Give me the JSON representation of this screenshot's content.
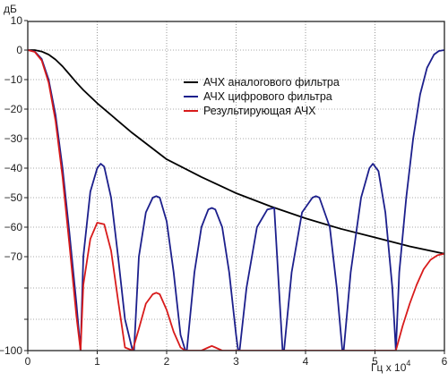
{
  "chart_data": {
    "type": "line",
    "ylabel": "дБ",
    "xlabel_base": "Гц x 10",
    "xlabel_exp": "4",
    "xlim": [
      0,
      6
    ],
    "ylim": [
      -100,
      10
    ],
    "grid": true,
    "legend_placement": "upper-right",
    "x_ticks": [
      "0",
      "1",
      "2",
      "3",
      "4",
      "5",
      "6"
    ],
    "y_ticks": [
      "10",
      "0",
      "−10",
      "−20",
      "−30",
      "−40",
      "−50",
      "−60",
      "−70",
      "−100"
    ],
    "y_tick_values": [
      10,
      0,
      -10,
      -20,
      -30,
      -40,
      -50,
      -60,
      -70,
      -100
    ],
    "series": [
      {
        "name": "АЧХ аналогового фильтра",
        "color": "#000000",
        "x": [
          0,
          0.1,
          0.2,
          0.3,
          0.4,
          0.5,
          0.6,
          0.7,
          0.8,
          1.0,
          1.2,
          1.5,
          2.0,
          2.5,
          3.0,
          3.5,
          4.0,
          4.5,
          5.0,
          5.5,
          6.0
        ],
        "y": [
          0,
          0,
          -0.5,
          -1.5,
          -3.2,
          -5.5,
          -8.2,
          -11,
          -13.5,
          -18,
          -22,
          -28,
          -37,
          -43,
          -48.5,
          -53,
          -57,
          -60.5,
          -63.5,
          -66.5,
          -69
        ]
      },
      {
        "name": "АЧХ цифрового фильтра",
        "color": "#1c1f8c",
        "x": [
          0,
          0.1,
          0.2,
          0.3,
          0.4,
          0.5,
          0.6,
          0.7,
          0.76,
          0.8,
          0.9,
          1.0,
          1.05,
          1.1,
          1.2,
          1.3,
          1.4,
          1.51,
          1.53,
          1.6,
          1.7,
          1.8,
          1.85,
          1.9,
          2.0,
          2.1,
          2.2,
          2.27,
          2.29,
          2.4,
          2.5,
          2.6,
          2.65,
          2.7,
          2.8,
          2.9,
          3.0,
          3.03,
          3.05,
          3.15,
          3.3,
          3.45,
          3.55,
          3.67,
          3.69,
          3.8,
          3.95,
          4.1,
          4.15,
          4.2,
          4.35,
          4.45,
          4.53,
          4.55,
          4.65,
          4.8,
          4.92,
          4.97,
          5.05,
          5.15,
          5.25,
          5.3,
          5.35,
          5.45,
          5.55,
          5.65,
          5.75,
          5.85,
          5.92,
          6.0
        ],
        "y": [
          0,
          -0.5,
          -3,
          -10,
          -22,
          -40,
          -62,
          -85,
          -100,
          -70,
          -48,
          -40,
          -38.5,
          -39.5,
          -50,
          -70,
          -90,
          -100,
          -100,
          -70,
          -55,
          -50,
          -49.5,
          -50,
          -58,
          -75,
          -95,
          -100,
          -100,
          -75,
          -60,
          -54,
          -53.5,
          -54,
          -60,
          -75,
          -95,
          -100,
          -100,
          -80,
          -60,
          -54,
          -53.5,
          -100,
          -100,
          -75,
          -55,
          -50,
          -49.5,
          -50,
          -60,
          -80,
          -100,
          -100,
          -75,
          -50,
          -40,
          -38.5,
          -41,
          -55,
          -80,
          -100,
          -75,
          -50,
          -30,
          -15,
          -6,
          -1.5,
          -0.3,
          0
        ]
      },
      {
        "name": "Результирующая АЧХ",
        "color": "#d81b1b",
        "x": [
          0,
          0.1,
          0.2,
          0.3,
          0.4,
          0.5,
          0.6,
          0.7,
          0.76,
          0.8,
          0.9,
          1.0,
          1.1,
          1.2,
          1.3,
          1.4,
          1.51,
          1.6,
          1.7,
          1.8,
          1.85,
          1.9,
          2.0,
          2.1,
          2.2,
          2.27,
          2.5,
          2.6,
          2.65,
          2.7,
          2.8,
          3.0,
          5.3,
          5.4,
          5.5,
          5.6,
          5.7,
          5.8,
          5.9,
          6.0
        ],
        "y": [
          0,
          -0.6,
          -3.5,
          -11,
          -24,
          -43,
          -66,
          -89,
          -100,
          -79,
          -64,
          -58.5,
          -59,
          -68,
          -84,
          -99,
          -100,
          -93,
          -85,
          -82,
          -81.5,
          -82,
          -87,
          -94,
          -99,
          -100,
          -100,
          -99,
          -98.5,
          -99,
          -100,
          -100,
          -100,
          -92,
          -85,
          -79,
          -74,
          -71,
          -69.5,
          -69
        ]
      }
    ]
  }
}
